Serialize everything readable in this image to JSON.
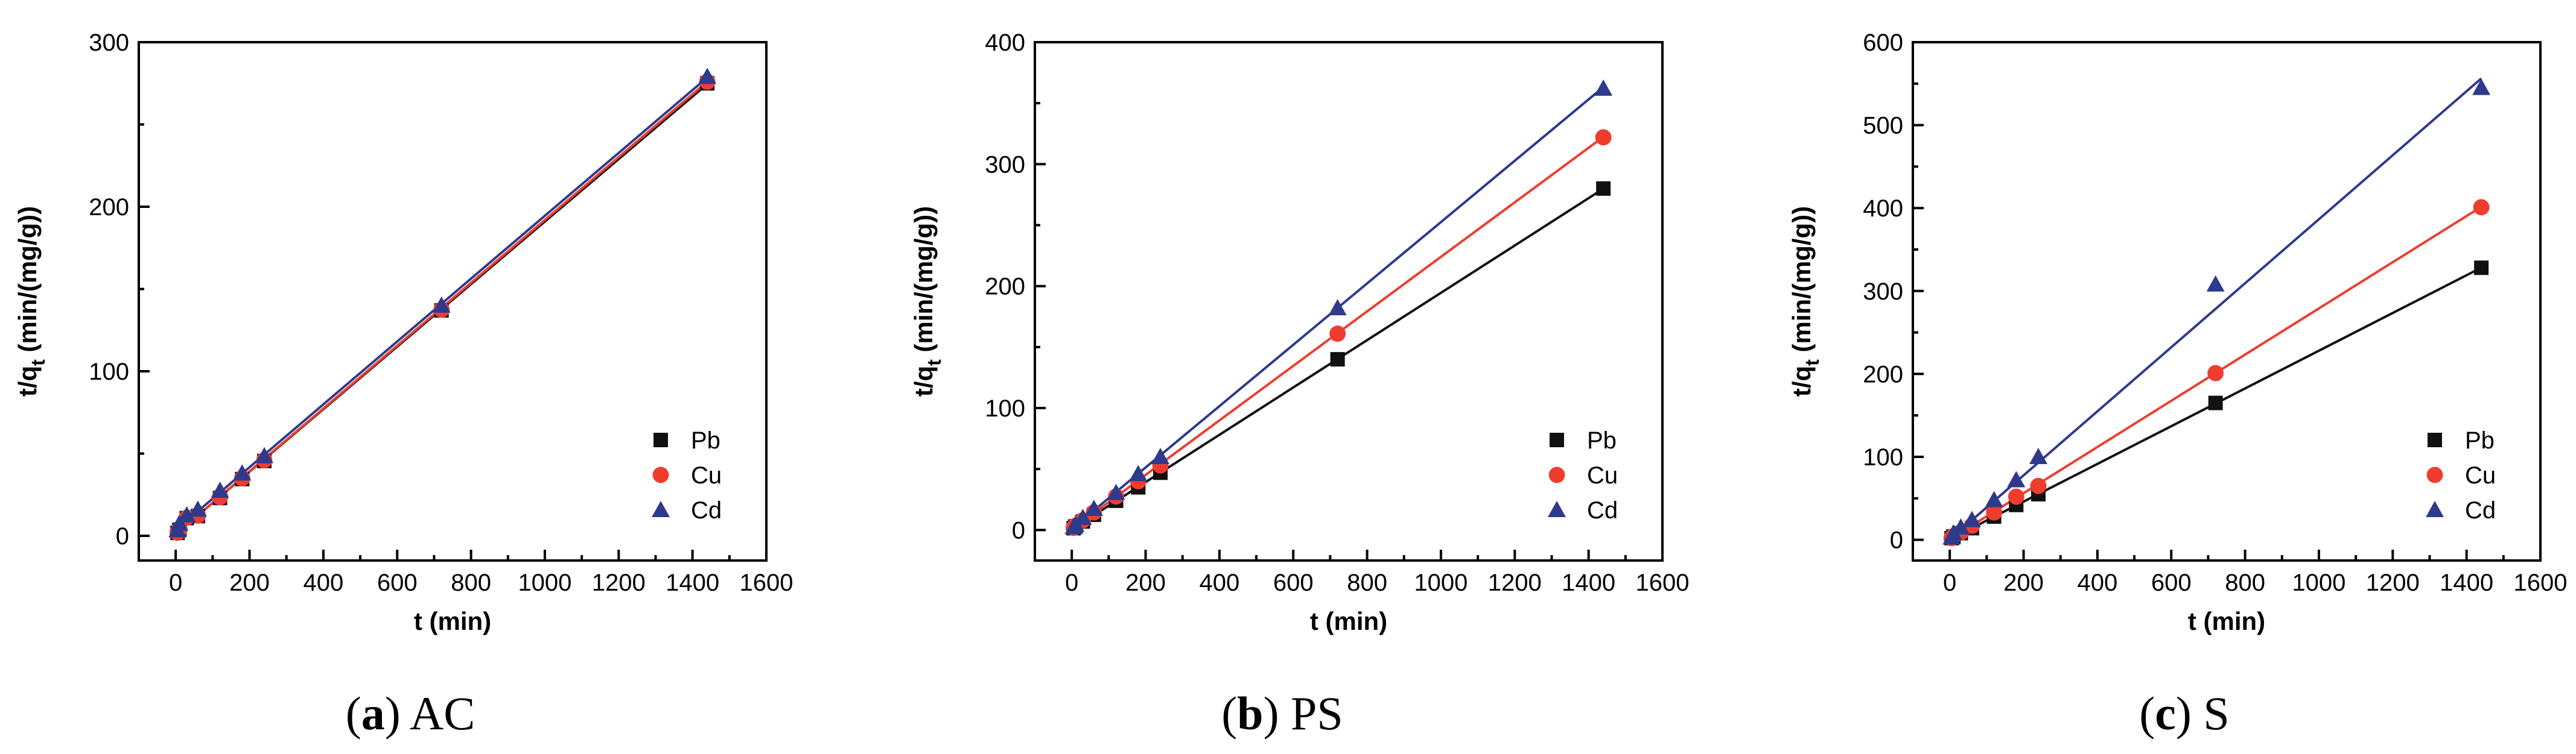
{
  "colors": {
    "Pb": "#111111",
    "Cu": "#ee3d2f",
    "Cd": "#2e3a8c"
  },
  "chart_data": [
    {
      "type": "scatter",
      "panel_letter": "a",
      "panel_name": "AC",
      "xlabel": "t (min)",
      "ylabel_main": "t/q",
      "ylabel_sub": "t",
      "ylabel_tail": " (min/(mg/g))",
      "xlim": [
        -100,
        1600
      ],
      "ylim": [
        -15,
        300
      ],
      "xticks": [
        0,
        200,
        400,
        600,
        800,
        1000,
        1200,
        1400,
        1600
      ],
      "yticks": [
        0,
        100,
        200,
        300
      ],
      "legend_position": "bottom-right",
      "x": [
        5,
        10,
        30,
        60,
        120,
        180,
        240,
        720,
        1440
      ],
      "series": [
        {
          "name": "Pb",
          "marker": "square",
          "values": [
            1.8,
            3.7,
            10.8,
            12.0,
            23.0,
            34.5,
            45.5,
            137.0,
            275.0
          ],
          "fit": [
            1.0,
            0.19
          ]
        },
        {
          "name": "Cu",
          "marker": "circle",
          "values": [
            1.9,
            3.8,
            11.0,
            12.3,
            23.5,
            35.0,
            46.0,
            137.5,
            276.0
          ],
          "fit": [
            1.0,
            0.191
          ]
        },
        {
          "name": "Cd",
          "marker": "triangle",
          "values": [
            3.5,
            7.5,
            12.5,
            16.0,
            27.5,
            38.0,
            48.5,
            140.0,
            279.0
          ],
          "fit": [
            3.5,
            0.191
          ]
        }
      ]
    },
    {
      "type": "scatter",
      "panel_letter": "b",
      "panel_name": "PS",
      "xlabel": "t (min)",
      "ylabel_main": "t/q",
      "ylabel_sub": "t",
      "ylabel_tail": " (min/(mg/g))",
      "xlim": [
        -100,
        1600
      ],
      "ylim": [
        -25,
        400
      ],
      "xticks": [
        0,
        200,
        400,
        600,
        800,
        1000,
        1200,
        1400,
        1600
      ],
      "yticks": [
        0,
        100,
        200,
        300,
        400
      ],
      "legend_position": "bottom-right",
      "x": [
        5,
        10,
        30,
        60,
        120,
        180,
        240,
        720,
        1440
      ],
      "series": [
        {
          "name": "Pb",
          "marker": "square",
          "values": [
            1.5,
            3.0,
            7.0,
            12.5,
            24.0,
            35.0,
            47.0,
            140.0,
            280.0
          ],
          "fit": [
            0.5,
            0.194
          ]
        },
        {
          "name": "Cu",
          "marker": "circle",
          "values": [
            1.8,
            3.5,
            8.0,
            14.5,
            27.5,
            40.0,
            53.0,
            161.0,
            322.0
          ],
          "fit": [
            0.5,
            0.2235
          ]
        },
        {
          "name": "Cd",
          "marker": "triangle",
          "values": [
            2.5,
            4.5,
            10.0,
            17.5,
            30.5,
            46.0,
            60.0,
            182.0,
            362.0
          ],
          "fit": [
            1.0,
            0.2515
          ]
        }
      ]
    },
    {
      "type": "scatter",
      "panel_letter": "c",
      "panel_name": "S",
      "xlabel": "t (min)",
      "ylabel_main": "t/q",
      "ylabel_sub": "t",
      "ylabel_tail": " (min/(mg/g))",
      "xlim": [
        -100,
        1600
      ],
      "ylim": [
        -25,
        600
      ],
      "xticks": [
        0,
        200,
        400,
        600,
        800,
        1000,
        1200,
        1400,
        1600
      ],
      "yticks": [
        0,
        100,
        200,
        300,
        400,
        500,
        600
      ],
      "legend_position": "bottom-right",
      "x": [
        5,
        10,
        30,
        60,
        120,
        180,
        240,
        720,
        1440
      ],
      "series": [
        {
          "name": "Pb",
          "marker": "square",
          "values": [
            2.0,
            4.0,
            8.0,
            14.0,
            28.0,
            42.0,
            55.0,
            165.0,
            328.0
          ],
          "fit": [
            0.5,
            0.2275
          ]
        },
        {
          "name": "Cu",
          "marker": "circle",
          "values": [
            2.0,
            4.5,
            9.0,
            17.0,
            33.0,
            52.0,
            65.0,
            201.0,
            401.0
          ],
          "fit": [
            0.5,
            0.2785
          ]
        },
        {
          "name": "Cd",
          "marker": "triangle",
          "values": [
            3.0,
            8.0,
            15.0,
            24.0,
            48.0,
            72.0,
            100.0,
            308.0,
            545.0
          ],
          "fit": [
            0.5,
            0.386
          ]
        }
      ]
    }
  ]
}
